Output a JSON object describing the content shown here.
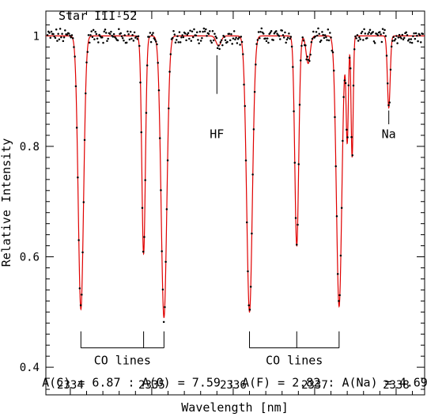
{
  "chart_data": {
    "type": "line",
    "title": "Star III-52",
    "xlabel": "Wavelength [nm]",
    "ylabel": "Relative Intensity",
    "xlim": [
      2333.7,
      2338.35
    ],
    "ylim": [
      0.35,
      1.045
    ],
    "x_ticks": [
      2334,
      2335,
      2336,
      2337,
      2338
    ],
    "y_ticks": [
      0.4,
      0.6,
      0.8,
      1
    ],
    "grid": false,
    "series": [
      {
        "name": "",
        "style": "points",
        "color": "#000000"
      },
      {
        "name": "",
        "style": "line",
        "color": "#e00000"
      }
    ],
    "lines": [
      {
        "center": 2334.13,
        "depth": 0.495,
        "width": 0.033
      },
      {
        "center": 2334.9,
        "depth": 0.395,
        "width": 0.022
      },
      {
        "center": 2335.15,
        "depth": 0.51,
        "width": 0.035
      },
      {
        "center": 2335.82,
        "depth": 0.018,
        "width": 0.03
      },
      {
        "center": 2336.2,
        "depth": 0.5,
        "width": 0.035
      },
      {
        "center": 2336.78,
        "depth": 0.38,
        "width": 0.024
      },
      {
        "center": 2336.92,
        "depth": 0.05,
        "width": 0.025
      },
      {
        "center": 2337.3,
        "depth": 0.49,
        "width": 0.033
      },
      {
        "center": 2337.4,
        "depth": 0.19,
        "width": 0.014
      },
      {
        "center": 2337.46,
        "depth": 0.22,
        "width": 0.013
      },
      {
        "center": 2337.91,
        "depth": 0.13,
        "width": 0.017
      }
    ],
    "annotations": [
      {
        "id": "hf",
        "text": "HF",
        "x": 2335.8,
        "marker_top": 0.965,
        "marker_bottom": 0.895,
        "text_y": 0.815
      },
      {
        "id": "na",
        "text": "Na",
        "x": 2337.91,
        "marker_top": 0.865,
        "marker_bottom": 0.84,
        "text_y": 0.815
      }
    ],
    "co_groups": [
      {
        "label": "CO lines",
        "ticks": [
          2334.13,
          2334.9,
          2335.15
        ],
        "top": 0.465,
        "bar": 0.435,
        "label_y": 0.405
      },
      {
        "label": "CO lines",
        "ticks": [
          2336.2,
          2336.78,
          2337.3
        ],
        "top": 0.465,
        "bar": 0.435,
        "label_y": 0.405
      }
    ],
    "abundance_text": "A(C) = 6.87 : A(O) = 7.59 : A(F) = 2.82 : A(Na) = 4.69",
    "abundance_y": 0.372
  }
}
